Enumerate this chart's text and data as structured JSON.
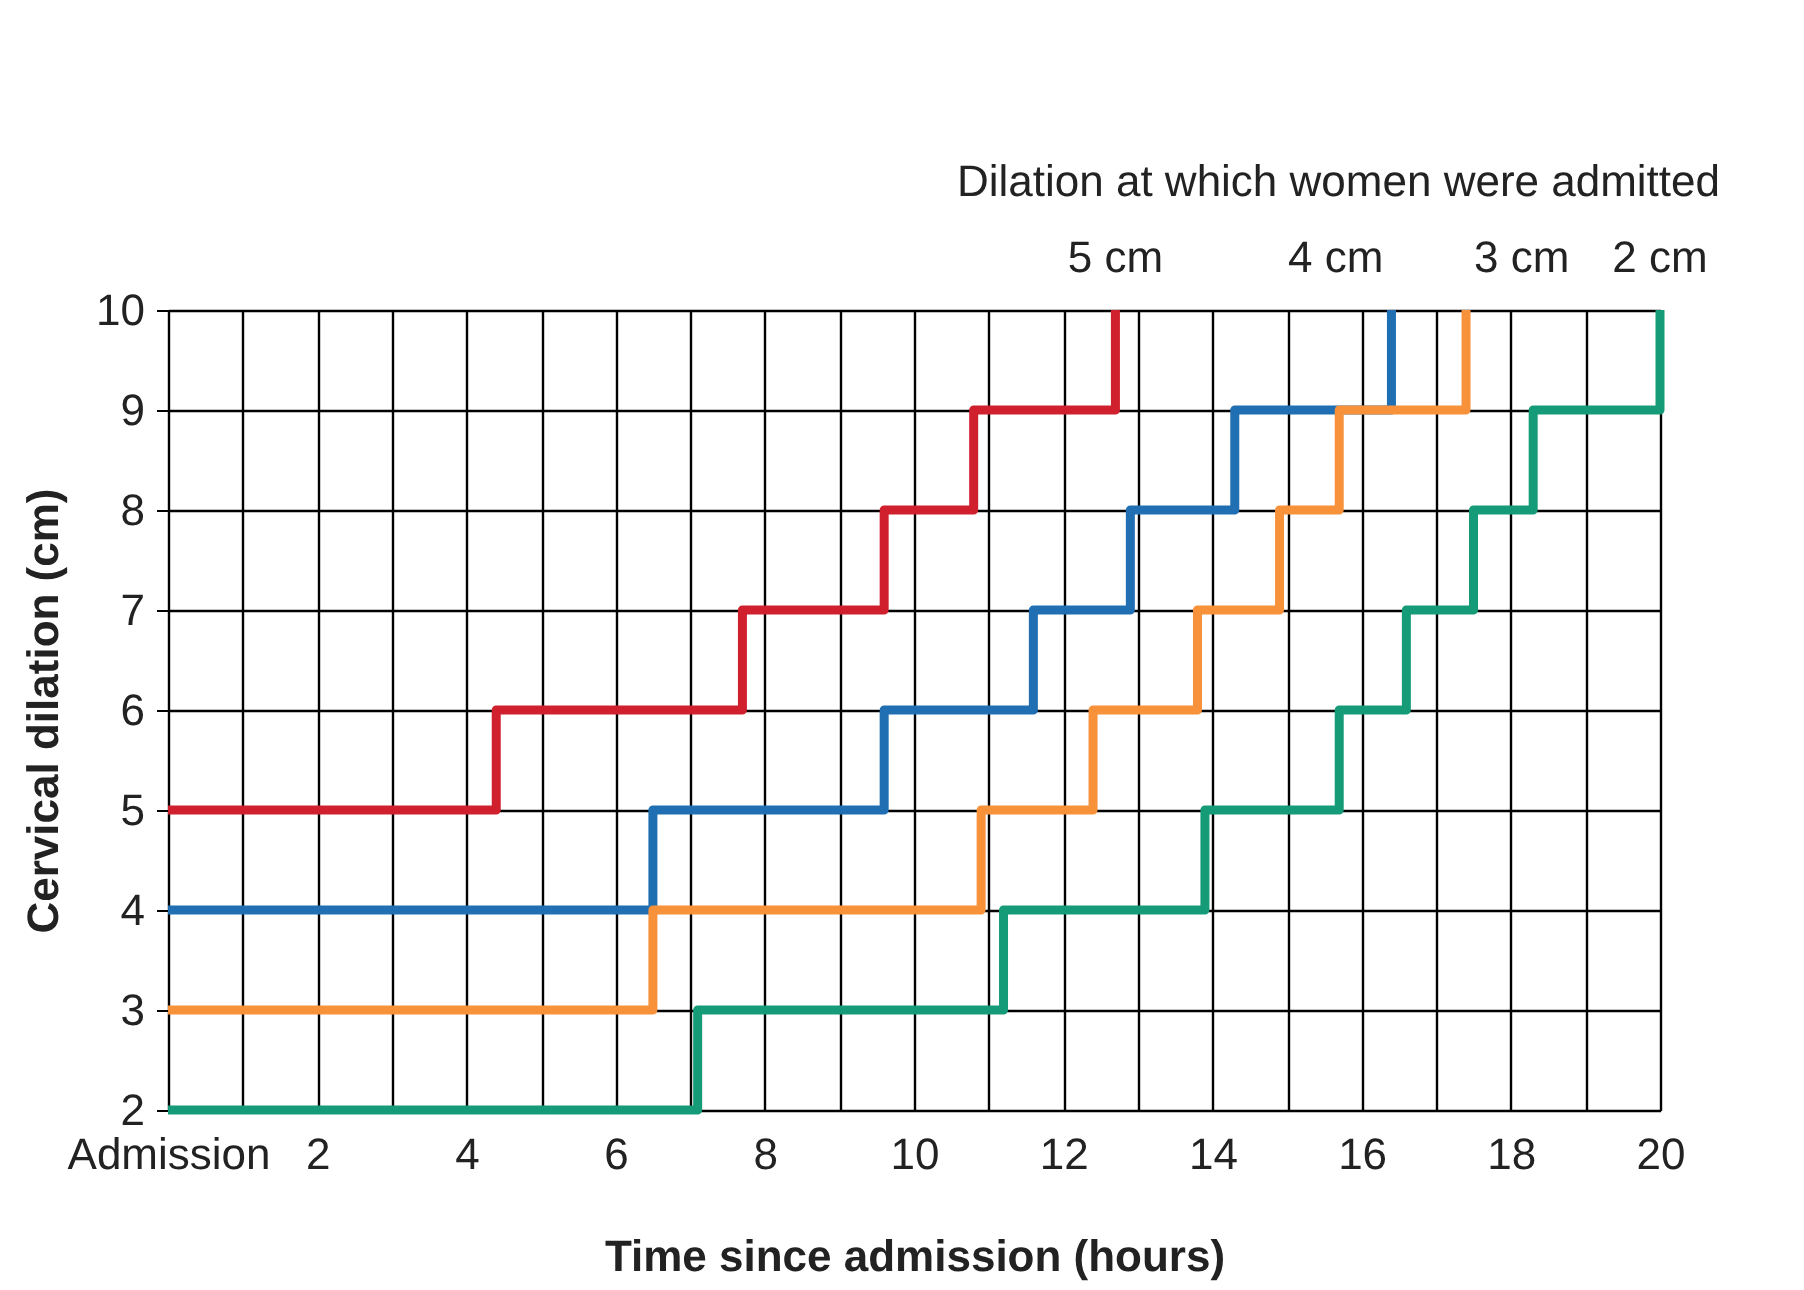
{
  "chart_data": {
    "type": "step",
    "xlabel": "Time since admission (hours)",
    "ylabel": "Cervical dilation (cm)",
    "legend_title": "Dilation at which women were admitted",
    "legend": "top",
    "xlim": [
      0,
      20
    ],
    "ylim": [
      2,
      10
    ],
    "xticks": [
      {
        "value": 0,
        "label": "Admission"
      },
      {
        "value": 1,
        "label": null
      },
      2,
      {
        "value": 3,
        "label": null
      },
      4,
      {
        "value": 5,
        "label": null
      },
      6,
      {
        "value": 7,
        "label": null
      },
      8,
      {
        "value": 9,
        "label": null
      },
      10,
      {
        "value": 11,
        "label": null
      },
      12,
      {
        "value": 13,
        "label": null
      },
      14,
      {
        "value": 15,
        "label": null
      },
      16,
      {
        "value": 17,
        "label": null
      },
      18,
      {
        "value": 19,
        "label": null
      },
      20
    ],
    "yticks": [
      2,
      3,
      4,
      5,
      6,
      7,
      8,
      9,
      10
    ],
    "grid": true,
    "line_style": "solid",
    "marker": "none",
    "series": [
      {
        "name": "5 cm",
        "color": "#d0202e",
        "x": [
          0,
          4.4,
          7.7,
          9.6,
          10.8,
          12.7
        ],
        "values": [
          5,
          6,
          7,
          8,
          9,
          10
        ]
      },
      {
        "name": "4 cm",
        "color": "#1f6fb2",
        "x": [
          0,
          6.5,
          9.6,
          11.6,
          12.9,
          14.3,
          16.4
        ],
        "values": [
          4,
          5,
          6,
          7,
          8,
          9,
          10
        ]
      },
      {
        "name": "3 cm",
        "color": "#f7913a",
        "x": [
          0,
          6.5,
          10.9,
          12.4,
          13.8,
          14.9,
          15.7,
          17.4
        ],
        "values": [
          3,
          4,
          5,
          6,
          7,
          8,
          9,
          10
        ]
      },
      {
        "name": "2 cm",
        "color": "#169b78",
        "x": [
          0,
          7.1,
          11.2,
          13.9,
          15.7,
          16.6,
          17.5,
          18.3,
          20
        ],
        "values": [
          2,
          3,
          4,
          5,
          6,
          7,
          8,
          9,
          10
        ]
      }
    ]
  }
}
